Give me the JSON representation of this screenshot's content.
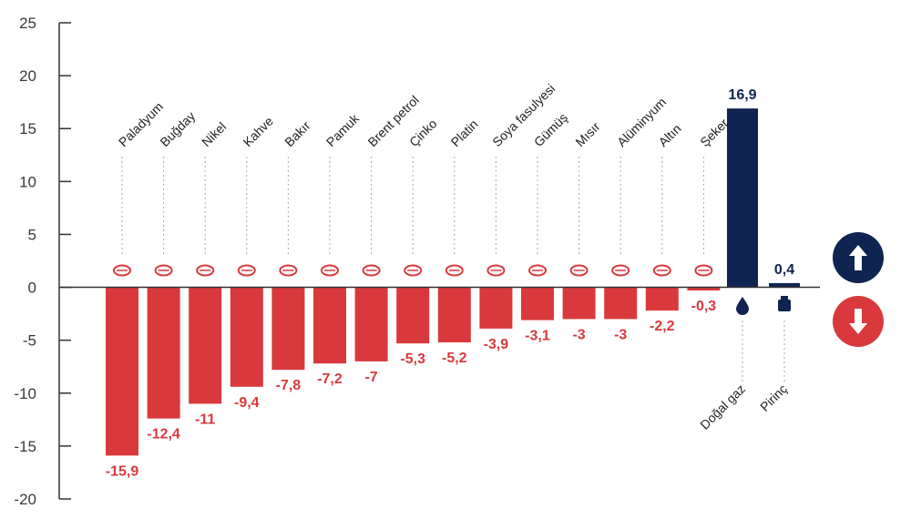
{
  "chart_data": {
    "type": "bar",
    "title": "",
    "xlabel": "",
    "ylabel": "",
    "ylim": [
      -20,
      25
    ],
    "y_ticks": [
      "25",
      "20",
      "15",
      "10",
      "5",
      "0",
      "-5",
      "-10",
      "-15",
      "-20"
    ],
    "grid": false,
    "colors": {
      "negative": "#d9393d",
      "positive": "#0f2450",
      "axis": "#333333",
      "guide": "#aaaaaa"
    },
    "categories": [
      "Paladyum",
      "Buğday",
      "Nikel",
      "Kahve",
      "Bakır",
      "Pamuk",
      "Brent petrol",
      "Çinko",
      "Platin",
      "Soya fasulyesi",
      "Gümüş",
      "Mısır",
      "Alüminyum",
      "Altın",
      "Şeker",
      "Doğal gaz",
      "Pirinç"
    ],
    "values": [
      -15.9,
      -12.4,
      -11,
      -9.4,
      -7.8,
      -7.2,
      -7,
      -5.3,
      -5.2,
      -3.9,
      -3.1,
      -3,
      -3,
      -2.2,
      -0.3,
      16.9,
      0.4
    ],
    "value_labels": [
      "-15,9",
      "-12,4",
      "-11",
      "-9,4",
      "-7,8",
      "-7,2",
      "-7",
      "-5,3",
      "-5,2",
      "-3,9",
      "-3,1",
      "-3",
      "-3",
      "-2,2",
      "-0,3",
      "16,9",
      "0,4"
    ],
    "icons": [
      "bar-icon",
      "wheat-icon",
      "bar-icon",
      "coffee-icon",
      "bar-icon",
      "cotton-icon",
      "oil-barrel-icon",
      "bar-icon",
      "bars-icon",
      "soybean-icon",
      "bars-icon",
      "corn-icon",
      "aluminum-icon",
      "bar-icon",
      "sugar-icon",
      "gas-flame-icon",
      "rice-icon"
    ],
    "legend": [
      {
        "icon": "arrow-up-icon",
        "color": "#0f2450"
      },
      {
        "icon": "arrow-down-icon",
        "color": "#d9393d"
      }
    ]
  }
}
